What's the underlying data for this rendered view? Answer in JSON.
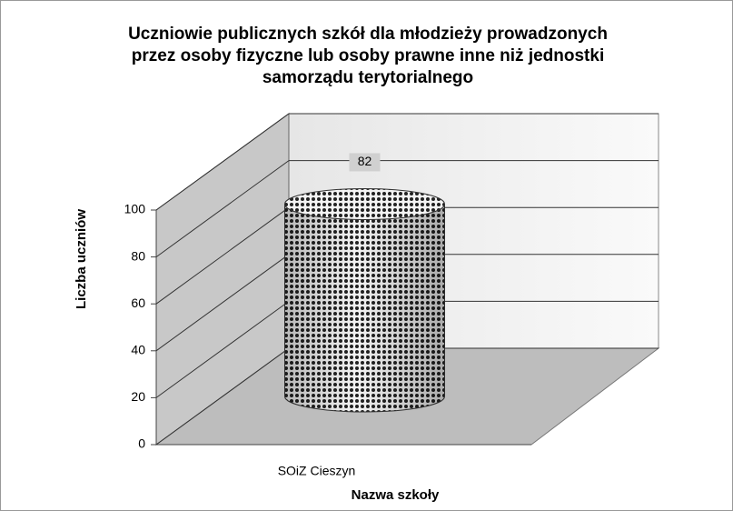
{
  "chart_data": {
    "type": "bar",
    "title": [
      "Uczniowie publicznych szkół dla młodzieży prowadzonych",
      "przez osoby fizyczne lub osoby prawne inne niż jednostki",
      "samorządu terytorialnego"
    ],
    "categories": [
      "SOiZ Cieszyn"
    ],
    "values": [
      82
    ],
    "color": "#444444",
    "xlabel": "Nazwa szkoły",
    "ylabel": "Liczba uczniów",
    "ylim": [
      0,
      100
    ],
    "yticks": [
      0,
      20,
      40,
      60,
      80,
      100
    ],
    "grid": true
  }
}
